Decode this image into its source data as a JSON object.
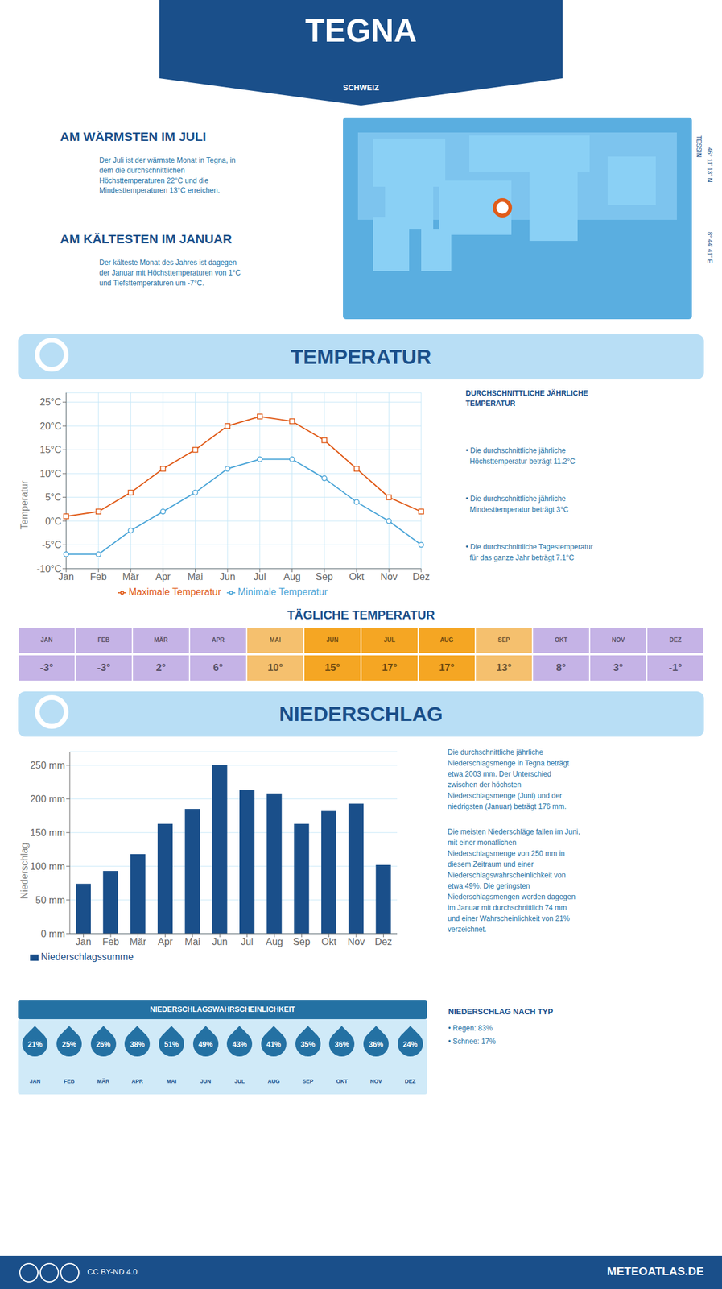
{
  "title": "TEGNA",
  "subtitle": "SCHWEIZ",
  "annotations": [
    "TESSIN",
    "46° 11' 13\" N",
    "8° 44' 41\" E",
    "AM WÄRMSTEN IM JULI",
    "Der Juli ist der wärmste Monat in Tegna, in\ndem die durchschnittlichen\nHöchsttemperaturen 22°C und die\nMindesttemperaturen 13°C erreichen.",
    "AM KÄLTESTEN IM JANUAR",
    "Der kälteste Monat des Jahres ist dagegen\nder Januar mit Höchsttemperaturen von 1°C\nund Tiefsttemperaturen um -7°C.",
    "CC BY-ND 4.0",
    "METEOATLAS.DE"
  ],
  "chart_data": [
    {
      "type": "line",
      "title": "TEMPERATUR",
      "categories": [
        "Jan",
        "Feb",
        "Mär",
        "Apr",
        "Mai",
        "Jun",
        "Jul",
        "Aug",
        "Sep",
        "Okt",
        "Nov",
        "Dez"
      ],
      "series": [
        {
          "name": "Maximale Temperatur",
          "color": "#e05c1a",
          "marker": "square",
          "values": [
            1,
            2,
            6,
            11,
            15,
            20,
            22,
            21,
            17,
            11,
            5,
            2
          ]
        },
        {
          "name": "Minimale Temperatur",
          "color": "#4da6d8",
          "marker": "circle",
          "values": [
            -7,
            -7,
            -2,
            2,
            6,
            11,
            13,
            13,
            9,
            4,
            0,
            -5
          ]
        }
      ],
      "ylabel": "Temperatur",
      "ylim": [
        -10,
        27
      ],
      "yticks": [
        {
          "value": -10,
          "label": "-10°C"
        },
        {
          "value": -5,
          "label": "-5°C"
        },
        {
          "value": 0,
          "label": "0°C"
        },
        {
          "value": 5,
          "label": "5°C"
        },
        {
          "value": 10,
          "label": "10°C"
        },
        {
          "value": 15,
          "label": "15°C"
        },
        {
          "value": 20,
          "label": "20°C"
        },
        {
          "value": 25,
          "label": "25°C"
        }
      ],
      "grid": true,
      "legend": "bottom",
      "annotations": [
        "DURCHSCHNITTLICHE JÄHRLICHE\nTEMPERATUR",
        "• Die durchschnittliche jährliche\n  Höchsttemperatur beträgt 11.2°C",
        "• Die durchschnittliche jährliche\n  Mindesttemperatur beträgt 3°C",
        "• Die durchschnittliche Tagestemperatur\n  für das ganze Jahr beträgt 7.1°C"
      ]
    },
    {
      "type": "table",
      "title": "TÄGLICHE TEMPERATUR",
      "categories": [
        "JAN",
        "FEB",
        "MÄR",
        "APR",
        "MAI",
        "JUN",
        "JUL",
        "AUG",
        "SEP",
        "OKT",
        "NOV",
        "DEZ"
      ],
      "values": [
        -3,
        -3,
        2,
        6,
        10,
        15,
        17,
        17,
        13,
        8,
        3,
        -1
      ],
      "value_labels": [
        "-3°",
        "-3°",
        "2°",
        "6°",
        "10°",
        "15°",
        "17°",
        "17°",
        "13°",
        "8°",
        "3°",
        "-1°"
      ],
      "colors": [
        "#c5b3e6",
        "#c5b3e6",
        "#c5b3e6",
        "#c5b3e6",
        "#f5c06e",
        "#f5a623",
        "#f5a623",
        "#f5a623",
        "#f5c06e",
        "#c5b3e6",
        "#c5b3e6",
        "#c5b3e6"
      ],
      "data_labels": true
    },
    {
      "type": "bar",
      "title": "NIEDERSCHLAG",
      "categories": [
        "Jan",
        "Feb",
        "Mär",
        "Apr",
        "Mai",
        "Jun",
        "Jul",
        "Aug",
        "Sep",
        "Okt",
        "Nov",
        "Dez"
      ],
      "series": [
        {
          "name": "Niederschlagssumme",
          "color": "#1a4f8a",
          "values": [
            74,
            93,
            118,
            163,
            185,
            250,
            213,
            208,
            163,
            182,
            193,
            102
          ]
        }
      ],
      "ylabel": "Niederschlag",
      "ylim": [
        0,
        270
      ],
      "yticks": [
        {
          "value": 0,
          "label": "0 mm"
        },
        {
          "value": 50,
          "label": "50 mm"
        },
        {
          "value": 100,
          "label": "100 mm"
        },
        {
          "value": 150,
          "label": "150 mm"
        },
        {
          "value": 200,
          "label": "200 mm"
        },
        {
          "value": 250,
          "label": "250 mm"
        }
      ],
      "grid": "y",
      "legend": "bottom left",
      "annotations": [
        "Die durchschnittliche jährliche\nNiederschlagsmenge in Tegna beträgt\netwa 2003 mm. Der Unterschied\nzwischen der höchsten\nNiederschlagsmenge (Juni) und der\nniedrigsten (Januar) beträgt 176 mm.",
        "Die meisten Niederschläge fallen im Juni,\nmit einer monatlichen\nNiederschlagsmenge von 250 mm in\ndiesem Zeitraum und einer\nNiederschlagswahrscheinlichkeit von\netwa 49%. Die geringsten\nNiederschlagsmengen werden dagegen\nim Januar mit durchschnittlich 74 mm\nund einer Wahrscheinlichkeit von 21%\nverzeichnet.",
        "NIEDERSCHLAG NACH TYP",
        "• Regen: 83%",
        "• Schnee: 17%"
      ]
    },
    {
      "type": "table",
      "title": "NIEDERSCHLAGSWAHRSCHEINLICHKEIT",
      "categories": [
        "JAN",
        "FEB",
        "MÄR",
        "APR",
        "MAI",
        "JUN",
        "JUL",
        "AUG",
        "SEP",
        "OKT",
        "NOV",
        "DEZ"
      ],
      "values": [
        21,
        25,
        26,
        38,
        51,
        49,
        43,
        41,
        35,
        36,
        36,
        24
      ],
      "value_labels": [
        "21%",
        "25%",
        "26%",
        "38%",
        "51%",
        "49%",
        "43%",
        "41%",
        "35%",
        "36%",
        "36%",
        "24%"
      ],
      "color": "#2471a3",
      "data_labels": true
    }
  ]
}
